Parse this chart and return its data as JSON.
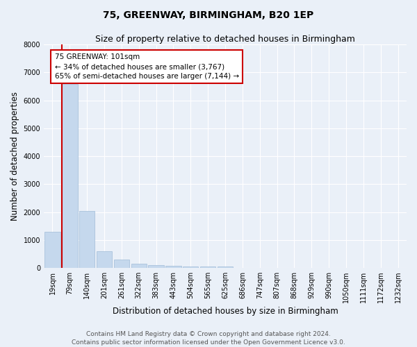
{
  "title": "75, GREENWAY, BIRMINGHAM, B20 1EP",
  "subtitle": "Size of property relative to detached houses in Birmingham",
  "xlabel": "Distribution of detached houses by size in Birmingham",
  "ylabel": "Number of detached properties",
  "categories": [
    "19sqm",
    "79sqm",
    "140sqm",
    "201sqm",
    "261sqm",
    "322sqm",
    "383sqm",
    "443sqm",
    "504sqm",
    "565sqm",
    "625sqm",
    "686sqm",
    "747sqm",
    "807sqm",
    "868sqm",
    "929sqm",
    "990sqm",
    "1050sqm",
    "1111sqm",
    "1172sqm",
    "1232sqm"
  ],
  "values": [
    1300,
    6600,
    2050,
    600,
    300,
    150,
    100,
    70,
    55,
    50,
    50,
    5,
    3,
    2,
    2,
    1,
    1,
    1,
    0,
    0,
    0
  ],
  "bar_color": "#c5d8ed",
  "bar_edge_color": "#a0bcd8",
  "property_line_color": "#cc0000",
  "annotation_box_edgecolor": "#cc0000",
  "annotation_title": "75 GREENWAY: 101sqm",
  "annotation_line1": "← 34% of detached houses are smaller (3,767)",
  "annotation_line2": "65% of semi-detached houses are larger (7,144) →",
  "ylim": [
    0,
    8000
  ],
  "yticks": [
    0,
    1000,
    2000,
    3000,
    4000,
    5000,
    6000,
    7000,
    8000
  ],
  "footer_line1": "Contains HM Land Registry data © Crown copyright and database right 2024.",
  "footer_line2": "Contains public sector information licensed under the Open Government Licence v3.0.",
  "background_color": "#eaf0f8",
  "title_fontsize": 10,
  "subtitle_fontsize": 9,
  "axis_label_fontsize": 8.5,
  "tick_fontsize": 7,
  "annotation_fontsize": 7.5,
  "footer_fontsize": 6.5
}
